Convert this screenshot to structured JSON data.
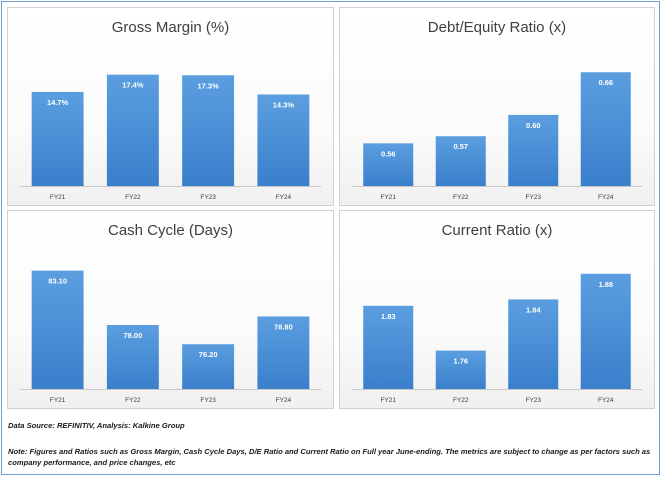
{
  "chart_data": [
    {
      "type": "bar",
      "title": "Gross Margin (%)",
      "categories": [
        "FY21",
        "FY22",
        "FY23",
        "FY24"
      ],
      "values": [
        14.7,
        17.4,
        17.3,
        14.3
      ],
      "value_labels": [
        "14.7%",
        "17.4%",
        "17.3%",
        "14.3%"
      ],
      "ylim": [
        0,
        20
      ],
      "grid": false,
      "legend": "none",
      "bar_color": "#4a8ed6"
    },
    {
      "type": "bar",
      "title": "Debt/Equity Ratio (x)",
      "categories": [
        "FY21",
        "FY22",
        "FY23",
        "FY24"
      ],
      "values": [
        0.56,
        0.57,
        0.6,
        0.66
      ],
      "value_labels": [
        "0.56",
        "0.57",
        "0.60",
        "0.66"
      ],
      "ylim": [
        0.5,
        0.68
      ],
      "grid": false,
      "legend": "none",
      "bar_color": "#4a8ed6"
    },
    {
      "type": "bar",
      "title": "Cash Cycle (Days)",
      "categories": [
        "FY21",
        "FY22",
        "FY23",
        "FY24"
      ],
      "values": [
        83.1,
        78.0,
        76.2,
        78.8
      ],
      "value_labels": [
        "83.10",
        "78.00",
        "76.20",
        "78.80"
      ],
      "ylim": [
        72,
        84
      ],
      "grid": false,
      "legend": "none",
      "bar_color": "#4a8ed6"
    },
    {
      "type": "bar",
      "title": "Current Ratio (x)",
      "categories": [
        "FY21",
        "FY22",
        "FY23",
        "FY24"
      ],
      "values": [
        1.83,
        1.76,
        1.84,
        1.88
      ],
      "value_labels": [
        "1.83",
        "1.76",
        "1.84",
        "1.88"
      ],
      "ylim": [
        1.7,
        1.9
      ],
      "grid": false,
      "legend": "none",
      "bar_color": "#4a8ed6"
    }
  ],
  "footer": {
    "source": "Data Source: REFINITIV, Analysis: Kalkine Group",
    "note": "Note: Figures and Ratios such as Gross Margin, Cash Cycle Days, D/E Ratio and Current Ratio on Full  year June-ending. The metrics are subject to change as per factors such as company performance, and price changes, etc"
  }
}
